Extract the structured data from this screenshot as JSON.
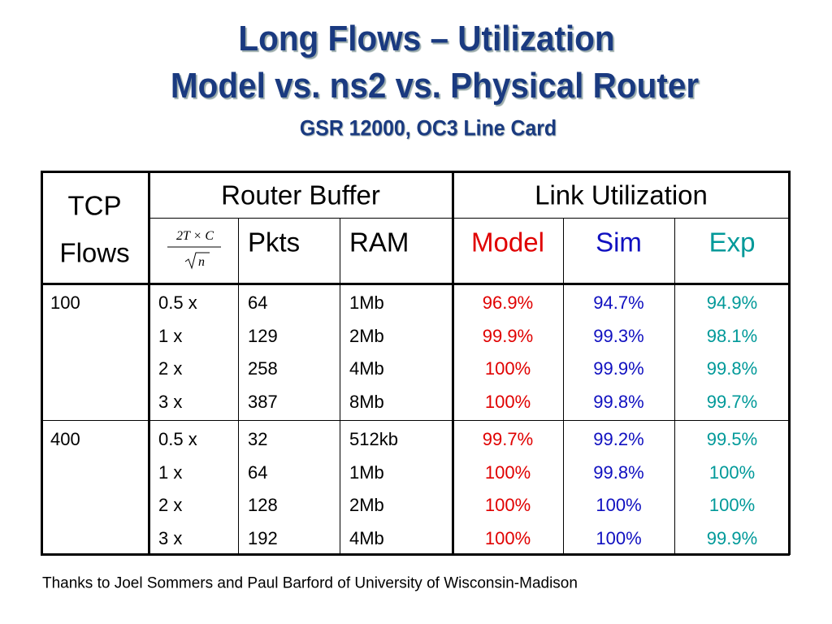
{
  "title": {
    "line1": "Long Flows – Utilization",
    "line2": "Model  vs. ns2 vs. Physical Router",
    "subtitle": "GSR 12000, OC3 Line Card"
  },
  "table": {
    "header": {
      "flows": [
        "TCP",
        "Flows"
      ],
      "router_buffer": "Router Buffer",
      "link_utilization": "Link Utilization",
      "formula": {
        "numerator": "2T × C",
        "denominator": "n"
      },
      "columns": [
        "Pkts",
        "RAM",
        "Model",
        "Sim",
        "Exp"
      ]
    },
    "groups": [
      {
        "flows": "100",
        "rows": [
          [
            "0.5 x",
            "64",
            "1Mb",
            "96.9%",
            "94.7%",
            "94.9%"
          ],
          [
            "1 x",
            "129",
            "2Mb",
            "99.9%",
            "99.3%",
            "98.1%"
          ],
          [
            "2 x",
            "258",
            "4Mb",
            "100%",
            "99.9%",
            "99.8%"
          ],
          [
            "3 x",
            "387",
            "8Mb",
            "100%",
            "99.8%",
            "99.7%"
          ]
        ]
      },
      {
        "flows": "400",
        "rows": [
          [
            "0.5 x",
            "32",
            "512kb",
            "99.7%",
            "99.2%",
            "99.5%"
          ],
          [
            "1 x",
            "64",
            "1Mb",
            "100%",
            "99.8%",
            "100%"
          ],
          [
            "2 x",
            "128",
            "2Mb",
            "100%",
            "100%",
            "100%"
          ],
          [
            "3 x",
            "192",
            "4Mb",
            "100%",
            "100%",
            "99.9%"
          ]
        ]
      }
    ]
  },
  "footer": "Thanks to Joel Sommers and Paul Barford of University of Wisconsin-Madison"
}
